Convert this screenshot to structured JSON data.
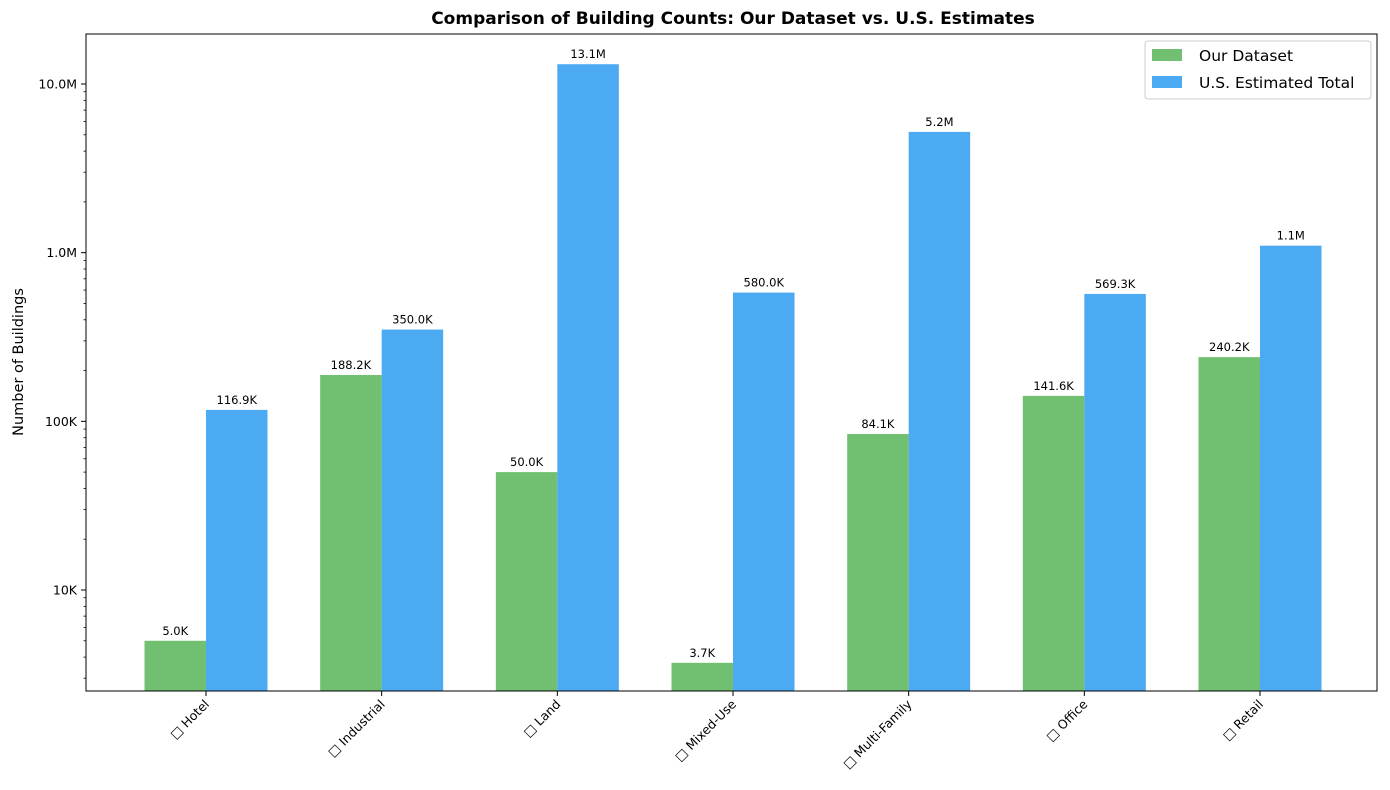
{
  "chart_data": {
    "type": "bar",
    "title": "Comparison of Building Counts: Our Dataset vs. U.S. Estimates",
    "xlabel": "",
    "ylabel": "Number of Buildings",
    "yscale": "log",
    "ylim": [
      2500,
      20000000
    ],
    "yticks": [
      {
        "value": 10000,
        "label": "10K"
      },
      {
        "value": 100000,
        "label": "100K"
      },
      {
        "value": 1000000,
        "label": "1.0M"
      },
      {
        "value": 10000000,
        "label": "10.0M"
      }
    ],
    "categories": [
      "□ Hotel",
      "□ Industrial",
      "□ Land",
      "□ Mixed-Use",
      "□ Multi-Family",
      "□ Office",
      "□ Retail"
    ],
    "series": [
      {
        "name": "Our Dataset",
        "color": "#71bf71",
        "values": [
          5000,
          188200,
          50000,
          3700,
          84100,
          141600,
          240200
        ],
        "labels": [
          "5.0K",
          "188.2K",
          "50.0K",
          "3.7K",
          "84.1K",
          "141.6K",
          "240.2K"
        ]
      },
      {
        "name": "U.S. Estimated Total",
        "color": "#4caaf3",
        "values": [
          116900,
          350000,
          13100000,
          580000,
          5200000,
          569300,
          1100000
        ],
        "labels": [
          "116.9K",
          "350.0K",
          "13.1M",
          "580.0K",
          "5.2M",
          "569.3K",
          "1.1M"
        ]
      }
    ],
    "legend_position": "top-right",
    "grid": false
  }
}
